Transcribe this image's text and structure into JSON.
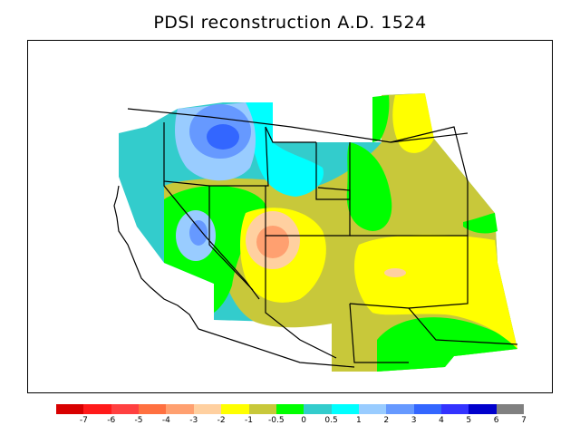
{
  "title": "PDSI reconstruction A.D. 1524",
  "legend": {
    "colors": [
      "#d80000",
      "#ff1a1a",
      "#ff4040",
      "#ff7040",
      "#ffa070",
      "#ffd0a0",
      "#ffff00",
      "#c8c83a",
      "#00ff00",
      "#33cccc",
      "#00ffff",
      "#99ccff",
      "#6699ff",
      "#3366ff",
      "#3333ff",
      "#0000cc",
      "#808080"
    ],
    "labels": [
      "-7",
      "-6",
      "-5",
      "-4",
      "-3",
      "-2",
      "-1",
      "-0.5",
      "0",
      "0.5",
      "1",
      "2",
      "3",
      "4",
      "5",
      "6",
      "7"
    ]
  },
  "map": {
    "region": "western United States",
    "palette": {
      "cyan_green": "#33cccc",
      "cyan": "#00ffff",
      "light_blue": "#99ccff",
      "blue": "#6699ff",
      "dark_blue": "#3366ff",
      "green": "#00ff00",
      "olive": "#c8c83a",
      "yellow": "#ffff00",
      "peach": "#ffd0a0",
      "orange": "#ffa070"
    }
  }
}
